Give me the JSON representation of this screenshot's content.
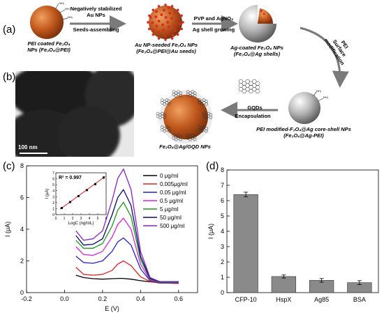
{
  "panels": {
    "a": "(a)",
    "b": "(b)",
    "c": "(c)",
    "d": "(d)"
  },
  "scheme": {
    "step1_caption": [
      "PEI coated Fe₃O₄",
      "NPs (Fe₃O₄@PEI)"
    ],
    "arrow1": [
      "Negatively stabilized",
      "Au NPs",
      "Seeds-assembling"
    ],
    "step2_caption": [
      "Au NP-seeded Fe₃O₄ NPs",
      "(Fe₃O₄@PEI@Au seeds)"
    ],
    "arrow2": [
      "PVP and AgNO₃",
      "Ag shell growing"
    ],
    "step3_caption": [
      "Ag-coated Fe₃O₄ NPs",
      "(Fe₃O₄@Ag shells)"
    ],
    "arrow3": [
      "PEI",
      "Surface",
      "modification"
    ],
    "step4_caption": [
      "PEI modified-F₃O₄@Ag core-shell NPs",
      "(Fe₃O₄@Ag-PEI)"
    ],
    "arrow4": [
      "GQDs",
      "Encapsulation"
    ],
    "step5_caption": "Fe₃O₄@Ag/GQD NPs",
    "nh2": "NH₂",
    "tem_scale": "100 nm",
    "colors": {
      "core": "#c0581c",
      "au": "#d42b2b",
      "ag": "#b7b7b7",
      "graphene": "#333333"
    }
  },
  "chart_data": [
    {
      "id": "c",
      "type": "line",
      "xlabel": "E (V)",
      "ylabel": "I (μA)",
      "xlim": [
        -0.2,
        0.7
      ],
      "ylim": [
        0,
        8
      ],
      "xticks": [
        "-0.2",
        "0.0",
        "0.2",
        "0.4",
        "0.6"
      ],
      "yticks": [
        "0",
        "2",
        "4",
        "6",
        "8"
      ],
      "legend_position": "top-right",
      "series": [
        {
          "name": "0 μg/ml",
          "color": "#000000",
          "x": [
            0.06,
            0.1,
            0.15,
            0.2,
            0.25,
            0.3,
            0.35,
            0.4,
            0.45,
            0.5,
            0.55,
            0.6
          ],
          "y": [
            1.1,
            0.95,
            0.88,
            0.85,
            0.88,
            0.9,
            0.85,
            0.75,
            0.68,
            0.62,
            0.6,
            0.58
          ]
        },
        {
          "name": "0.005μg/ml",
          "color": "#e02020",
          "x": [
            0.06,
            0.1,
            0.15,
            0.2,
            0.25,
            0.28,
            0.31,
            0.35,
            0.4,
            0.45,
            0.5,
            0.55,
            0.6
          ],
          "y": [
            1.6,
            1.15,
            1.1,
            1.15,
            1.4,
            1.8,
            2.0,
            1.7,
            1.0,
            0.7,
            0.6,
            0.6,
            0.58
          ]
        },
        {
          "name": "0.05 μg/ml",
          "color": "#2020d0",
          "x": [
            0.06,
            0.1,
            0.15,
            0.2,
            0.25,
            0.28,
            0.31,
            0.35,
            0.4,
            0.45,
            0.5,
            0.55,
            0.6
          ],
          "y": [
            2.3,
            1.9,
            1.85,
            2.0,
            2.6,
            3.2,
            3.45,
            3.0,
            1.5,
            0.75,
            0.62,
            0.62,
            0.62
          ]
        },
        {
          "name": "0.5 μg/ml",
          "color": "#e020e0",
          "x": [
            0.06,
            0.1,
            0.15,
            0.2,
            0.25,
            0.28,
            0.31,
            0.35,
            0.4,
            0.45,
            0.5,
            0.55,
            0.6
          ],
          "y": [
            2.9,
            2.4,
            2.35,
            2.6,
            3.5,
            4.3,
            4.7,
            4.0,
            1.8,
            0.8,
            0.65,
            0.65,
            0.65
          ]
        },
        {
          "name": "5 μg/ml",
          "color": "#1a9a1a",
          "x": [
            0.06,
            0.1,
            0.15,
            0.2,
            0.25,
            0.28,
            0.31,
            0.35,
            0.4,
            0.45,
            0.5,
            0.55,
            0.6
          ],
          "y": [
            3.3,
            2.8,
            2.8,
            3.1,
            4.2,
            5.2,
            5.7,
            4.8,
            2.1,
            0.85,
            0.65,
            0.65,
            0.65
          ]
        },
        {
          "name": "50 μg/ml",
          "color": "#0a0a6a",
          "x": [
            0.06,
            0.1,
            0.15,
            0.2,
            0.25,
            0.28,
            0.31,
            0.35,
            0.4,
            0.45,
            0.5,
            0.55,
            0.6
          ],
          "y": [
            3.6,
            3.0,
            3.05,
            3.4,
            4.9,
            6.0,
            6.5,
            5.5,
            2.3,
            0.9,
            0.68,
            0.68,
            0.68
          ]
        },
        {
          "name": "500 μg/ml",
          "color": "#8a20d0",
          "x": [
            0.06,
            0.1,
            0.15,
            0.2,
            0.25,
            0.28,
            0.31,
            0.35,
            0.4,
            0.45,
            0.5,
            0.55,
            0.6
          ],
          "y": [
            3.9,
            3.3,
            3.4,
            3.9,
            5.8,
            7.2,
            7.8,
            6.5,
            2.6,
            0.95,
            0.7,
            0.7,
            0.7
          ]
        }
      ],
      "inset": {
        "type": "scatter",
        "annotation": "R² = 0.997",
        "xlabel": "LogC (ng/mL)",
        "ylabel": "I (μA)",
        "xlim": [
          0,
          6
        ],
        "ylim": [
          0,
          7
        ],
        "xticks": [
          "0",
          "1",
          "2",
          "3",
          "4",
          "5",
          "6"
        ],
        "yticks": [
          "0",
          "1",
          "2",
          "3",
          "4",
          "5",
          "6",
          "7"
        ],
        "points": [
          {
            "x": 0.7,
            "y": 1.1,
            "err": 0.1
          },
          {
            "x": 1.7,
            "y": 2.1,
            "err": 0.15
          },
          {
            "x": 2.7,
            "y": 3.1,
            "err": 0.1
          },
          {
            "x": 3.7,
            "y": 4.1,
            "err": 0.15
          },
          {
            "x": 4.7,
            "y": 5.1,
            "err": 0.1
          },
          {
            "x": 5.7,
            "y": 6.2,
            "err": 0.2
          }
        ],
        "fit": {
          "x": [
            0.5,
            5.9
          ],
          "y": [
            0.9,
            6.4
          ]
        },
        "point_color": "#000000",
        "fit_color": "#e02020"
      }
    },
    {
      "id": "d",
      "type": "bar",
      "ylabel": "I (μA)",
      "ylim": [
        0,
        8
      ],
      "yticks": [
        "0",
        "1",
        "2",
        "3",
        "4",
        "5",
        "6",
        "7",
        "8"
      ],
      "categories": [
        "CFP-10",
        "HspX",
        "Ag85",
        "BSA"
      ],
      "values": [
        6.4,
        1.05,
        0.8,
        0.65
      ],
      "errors": [
        0.15,
        0.1,
        0.12,
        0.13
      ],
      "bar_color": "#8a8a8a"
    }
  ]
}
